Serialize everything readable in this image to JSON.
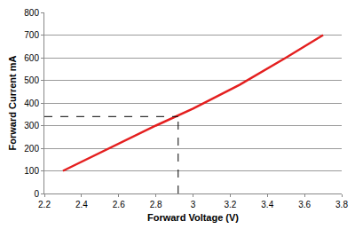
{
  "chart_data": {
    "type": "line",
    "x_label": "Forward Voltage (V)",
    "y_label": "Forward Current mA",
    "x": [
      2.3,
      2.55,
      2.8,
      3.0,
      3.25,
      3.5,
      3.7
    ],
    "values": [
      100,
      200,
      300,
      375,
      480,
      600,
      700
    ],
    "color": "#e41f1f",
    "xlim": [
      2.2,
      3.8
    ],
    "xticks": [
      2.2,
      2.4,
      2.6,
      2.8,
      3,
      3.2,
      3.4,
      3.6,
      3.8
    ],
    "ylim": [
      0,
      800
    ],
    "yticks": [
      0,
      100,
      200,
      300,
      400,
      500,
      600,
      700,
      800
    ],
    "grid": true,
    "reference_point": {
      "x": 2.92,
      "y": 340,
      "line_style": "dashed"
    }
  }
}
